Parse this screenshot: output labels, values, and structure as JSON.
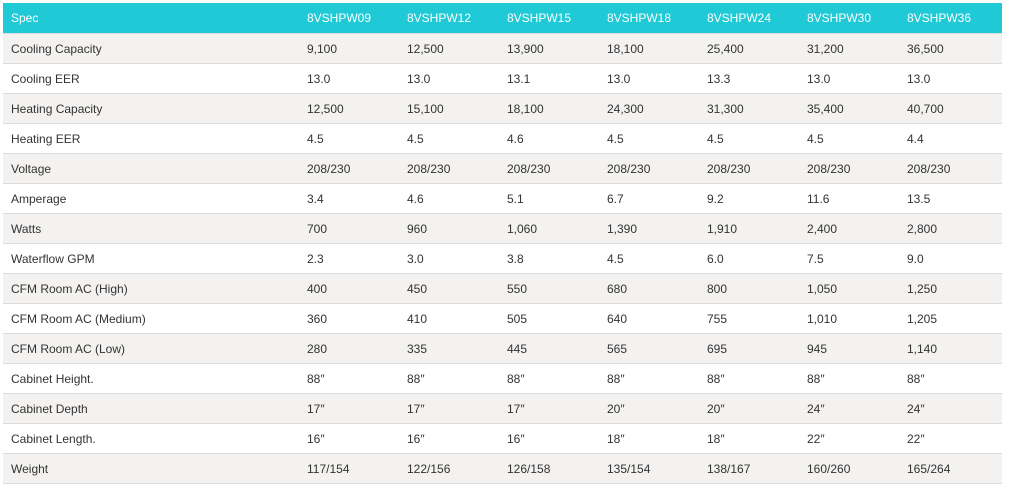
{
  "table": {
    "headers": [
      "Spec",
      "8VSHPW09",
      "8VSHPW12",
      "8VSHPW15",
      "8VSHPW18",
      "8VSHPW24",
      "8VSHPW30",
      "8VSHPW36"
    ],
    "rows": [
      [
        "Cooling Capacity",
        "9,100",
        "12,500",
        "13,900",
        "18,100",
        "25,400",
        "31,200",
        "36,500"
      ],
      [
        "Cooling EER",
        "13.0",
        "13.0",
        "13.1",
        "13.0",
        "13.3",
        "13.0",
        "13.0"
      ],
      [
        "Heating Capacity",
        "12,500",
        "15,100",
        "18,100",
        "24,300",
        "31,300",
        "35,400",
        "40,700"
      ],
      [
        "Heating EER",
        "4.5",
        "4.5",
        "4.6",
        "4.5",
        "4.5",
        "4.5",
        "4.4"
      ],
      [
        "Voltage",
        "208/230",
        "208/230",
        "208/230",
        "208/230",
        "208/230",
        "208/230",
        "208/230"
      ],
      [
        "Amperage",
        "3.4",
        "4.6",
        "5.1",
        "6.7",
        "9.2",
        "11.6",
        "13.5"
      ],
      [
        "Watts",
        "700",
        "960",
        "1,060",
        "1,390",
        "1,910",
        "2,400",
        "2,800"
      ],
      [
        "Waterflow GPM",
        "2.3",
        "3.0",
        "3.8",
        "4.5",
        "6.0",
        "7.5",
        "9.0"
      ],
      [
        "CFM Room AC (High)",
        "400",
        "450",
        "550",
        "680",
        "800",
        "1,050",
        "1,250"
      ],
      [
        "CFM Room AC (Medium)",
        "360",
        "410",
        "505",
        "640",
        "755",
        "1,010",
        "1,205"
      ],
      [
        "CFM Room AC (Low)",
        "280",
        "335",
        "445",
        "565",
        "695",
        "945",
        "1,140"
      ],
      [
        "Cabinet Height.",
        "88″",
        "88″",
        "88″",
        "88″",
        "88″",
        "88″",
        "88″"
      ],
      [
        "Cabinet Depth",
        "17″",
        "17″",
        "17″",
        "20″",
        "20″",
        "24″",
        "24″"
      ],
      [
        "Cabinet Length.",
        "16″",
        "16″",
        "16″",
        "18″",
        "18″",
        "22″",
        "22″"
      ],
      [
        "Weight",
        "117/154",
        "122/156",
        "126/158",
        "135/154",
        "138/167",
        "160/260",
        "165/264"
      ]
    ]
  },
  "colors": {
    "header_bg": "#1fcad6",
    "header_text": "#ffffff",
    "stripe_bg": "#f3f2f0"
  }
}
